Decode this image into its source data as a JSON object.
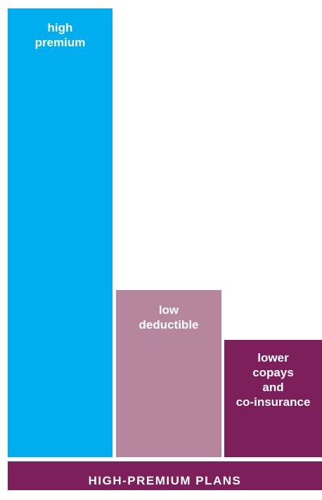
{
  "diagram": {
    "bars": [
      {
        "label": "high\npremium",
        "color": "#00aeef"
      },
      {
        "label": "low\ndeductible",
        "color": "#b5869d"
      },
      {
        "label": "lower\ncopays\nand\nco-insurance",
        "color": "#7c1f5a"
      }
    ],
    "footer": {
      "title": "HIGH-PREMIUM PLANS",
      "color": "#7c1f5a"
    }
  }
}
